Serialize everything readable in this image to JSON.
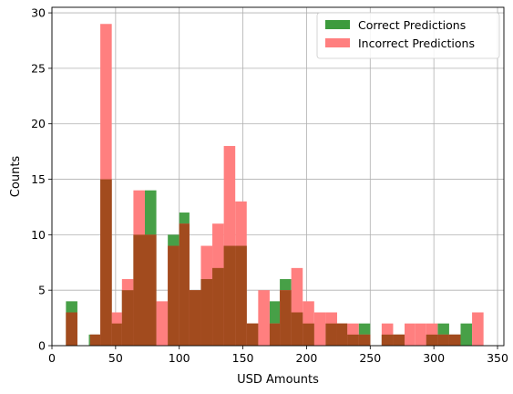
{
  "chart_data": {
    "type": "bar",
    "subtype": "overlaid-histogram",
    "title": "",
    "xlabel": "USD Amounts",
    "ylabel": "Counts",
    "xlim": [
      0,
      355
    ],
    "ylim": [
      0,
      30.5
    ],
    "xticks": [
      0,
      50,
      100,
      150,
      200,
      250,
      300,
      350
    ],
    "yticks": [
      0,
      5,
      10,
      15,
      20,
      25,
      30
    ],
    "grid": true,
    "legend_position": "top-right",
    "overlap_color": "#a24b1e",
    "series": [
      {
        "name": "Correct Predictions",
        "color": "#3d9b3d",
        "opacity": 0.95,
        "bins": [
          [
            11,
            20,
            4
          ],
          [
            20,
            29,
            0
          ],
          [
            29,
            38,
            1
          ],
          [
            38,
            47,
            15
          ],
          [
            47,
            55,
            2
          ],
          [
            55,
            64,
            5
          ],
          [
            64,
            73,
            10
          ],
          [
            73,
            82,
            14
          ],
          [
            82,
            91,
            0
          ],
          [
            91,
            100,
            10
          ],
          [
            100,
            108,
            12
          ],
          [
            108,
            117,
            5
          ],
          [
            117,
            126,
            6
          ],
          [
            126,
            135,
            7
          ],
          [
            135,
            144,
            9
          ],
          [
            144,
            153,
            9
          ],
          [
            153,
            162,
            2
          ],
          [
            162,
            171,
            0
          ],
          [
            171,
            179,
            4
          ],
          [
            179,
            188,
            6
          ],
          [
            188,
            197,
            3
          ],
          [
            197,
            206,
            2
          ],
          [
            206,
            215,
            0
          ],
          [
            215,
            224,
            2
          ],
          [
            224,
            232,
            2
          ],
          [
            232,
            241,
            1
          ],
          [
            241,
            250,
            2
          ],
          [
            250,
            259,
            0
          ],
          [
            259,
            268,
            1
          ],
          [
            268,
            277,
            1
          ],
          [
            277,
            285,
            0
          ],
          [
            285,
            294,
            0
          ],
          [
            294,
            303,
            1
          ],
          [
            303,
            312,
            2
          ],
          [
            312,
            321,
            1
          ],
          [
            321,
            330,
            2
          ]
        ]
      },
      {
        "name": "Incorrect Predictions",
        "color": "#ff7f7f",
        "opacity": 1,
        "bins": [
          [
            11,
            20,
            3
          ],
          [
            30,
            38,
            1
          ],
          [
            38,
            47,
            29
          ],
          [
            47,
            55,
            3
          ],
          [
            55,
            64,
            6
          ],
          [
            64,
            73,
            14
          ],
          [
            73,
            82,
            10
          ],
          [
            82,
            91,
            4
          ],
          [
            91,
            100,
            9
          ],
          [
            100,
            108,
            11
          ],
          [
            108,
            117,
            5
          ],
          [
            117,
            126,
            9
          ],
          [
            126,
            135,
            11
          ],
          [
            135,
            144,
            18
          ],
          [
            144,
            153,
            13
          ],
          [
            153,
            162,
            2
          ],
          [
            162,
            171,
            5
          ],
          [
            171,
            179,
            2
          ],
          [
            179,
            188,
            5
          ],
          [
            188,
            197,
            7
          ],
          [
            197,
            206,
            4
          ],
          [
            206,
            215,
            3
          ],
          [
            215,
            224,
            3
          ],
          [
            224,
            232,
            2
          ],
          [
            232,
            241,
            2
          ],
          [
            241,
            250,
            1
          ],
          [
            250,
            259,
            0
          ],
          [
            259,
            268,
            2
          ],
          [
            268,
            277,
            1
          ],
          [
            277,
            285,
            2
          ],
          [
            285,
            294,
            2
          ],
          [
            294,
            303,
            2
          ],
          [
            303,
            312,
            1
          ],
          [
            312,
            321,
            1
          ],
          [
            321,
            330,
            0
          ],
          [
            330,
            339,
            3
          ]
        ]
      }
    ]
  }
}
